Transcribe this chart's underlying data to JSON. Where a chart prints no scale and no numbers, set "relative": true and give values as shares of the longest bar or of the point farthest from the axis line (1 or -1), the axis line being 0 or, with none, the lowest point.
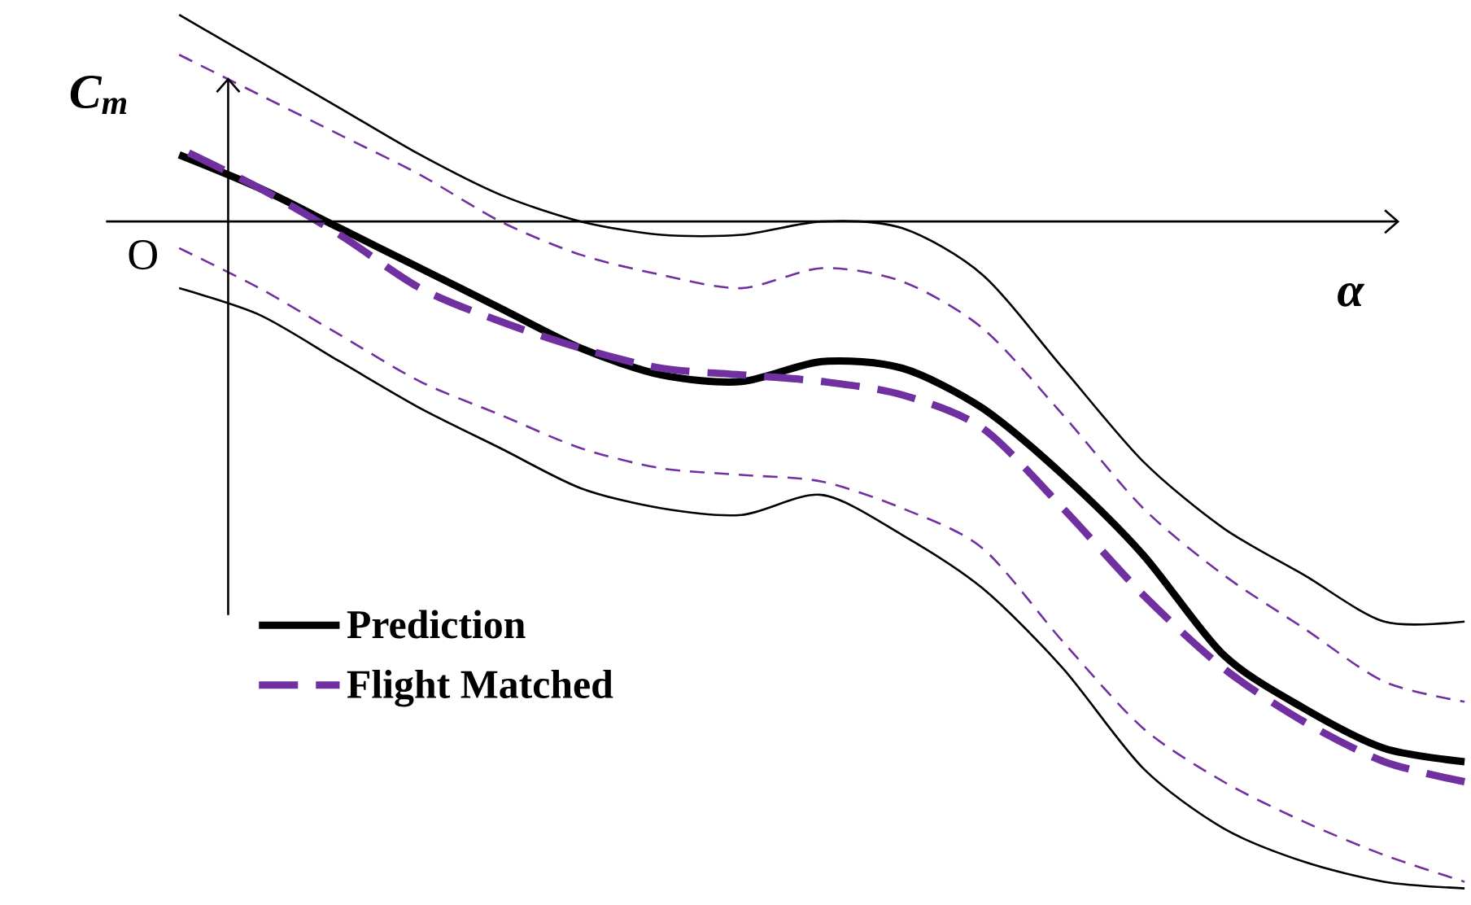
{
  "chart_data": {
    "type": "line",
    "relative": true,
    "xlabel": "α",
    "ylabel": "C$_{m}$",
    "annotations": [
      "O"
    ],
    "legend": "bottom left",
    "categories": [
      null,
      null,
      null,
      null,
      null,
      null,
      null,
      null,
      null,
      null,
      null,
      null,
      null,
      null,
      null,
      null,
      null
    ],
    "series": [
      {
        "name": "Prediction",
        "color": "#000000",
        "line_style": "solid",
        "values": [
          0.1,
          0.05,
          -0.01,
          -0.07,
          -0.13,
          -0.19,
          -0.23,
          -0.24,
          -0.21,
          -0.22,
          -0.28,
          -0.38,
          -0.5,
          -0.65,
          -0.73,
          -0.79,
          -0.81
        ]
      },
      {
        "name": "Flight Matched",
        "color": "#7030a0",
        "line_style": "dashed",
        "values": [
          0.11,
          0.05,
          -0.02,
          -0.1,
          -0.15,
          -0.19,
          -0.22,
          -0.23,
          -0.24,
          -0.26,
          -0.31,
          -0.43,
          -0.56,
          -0.67,
          -0.75,
          -0.81,
          -0.84
        ]
      },
      {
        "color": "#000000",
        "line_style": "solid",
        "values": [
          0.31,
          0.24,
          0.17,
          0.1,
          0.04,
          0.0,
          -0.02,
          -0.02,
          0.0,
          -0.01,
          -0.08,
          -0.22,
          -0.36,
          -0.46,
          -0.53,
          -0.6,
          -0.6
        ]
      },
      {
        "color": "#7030a0",
        "line_style": "dashed",
        "values": [
          0.25,
          0.19,
          0.13,
          0.07,
          0.0,
          -0.05,
          -0.08,
          -0.1,
          -0.07,
          -0.09,
          -0.16,
          -0.29,
          -0.43,
          -0.53,
          -0.61,
          -0.69,
          -0.72
        ]
      },
      {
        "color": "#7030a0",
        "line_style": "dashed",
        "values": [
          -0.04,
          -0.1,
          -0.17,
          -0.24,
          -0.29,
          -0.34,
          -0.37,
          -0.38,
          -0.39,
          -0.43,
          -0.49,
          -0.63,
          -0.76,
          -0.84,
          -0.9,
          -0.95,
          -0.99
        ]
      },
      {
        "color": "#000000",
        "line_style": "solid",
        "values": [
          -0.1,
          -0.14,
          -0.21,
          -0.28,
          -0.34,
          -0.4,
          -0.43,
          -0.44,
          -0.41,
          -0.47,
          -0.55,
          -0.67,
          -0.82,
          -0.91,
          -0.96,
          -0.99,
          -1.0
        ]
      }
    ]
  }
}
